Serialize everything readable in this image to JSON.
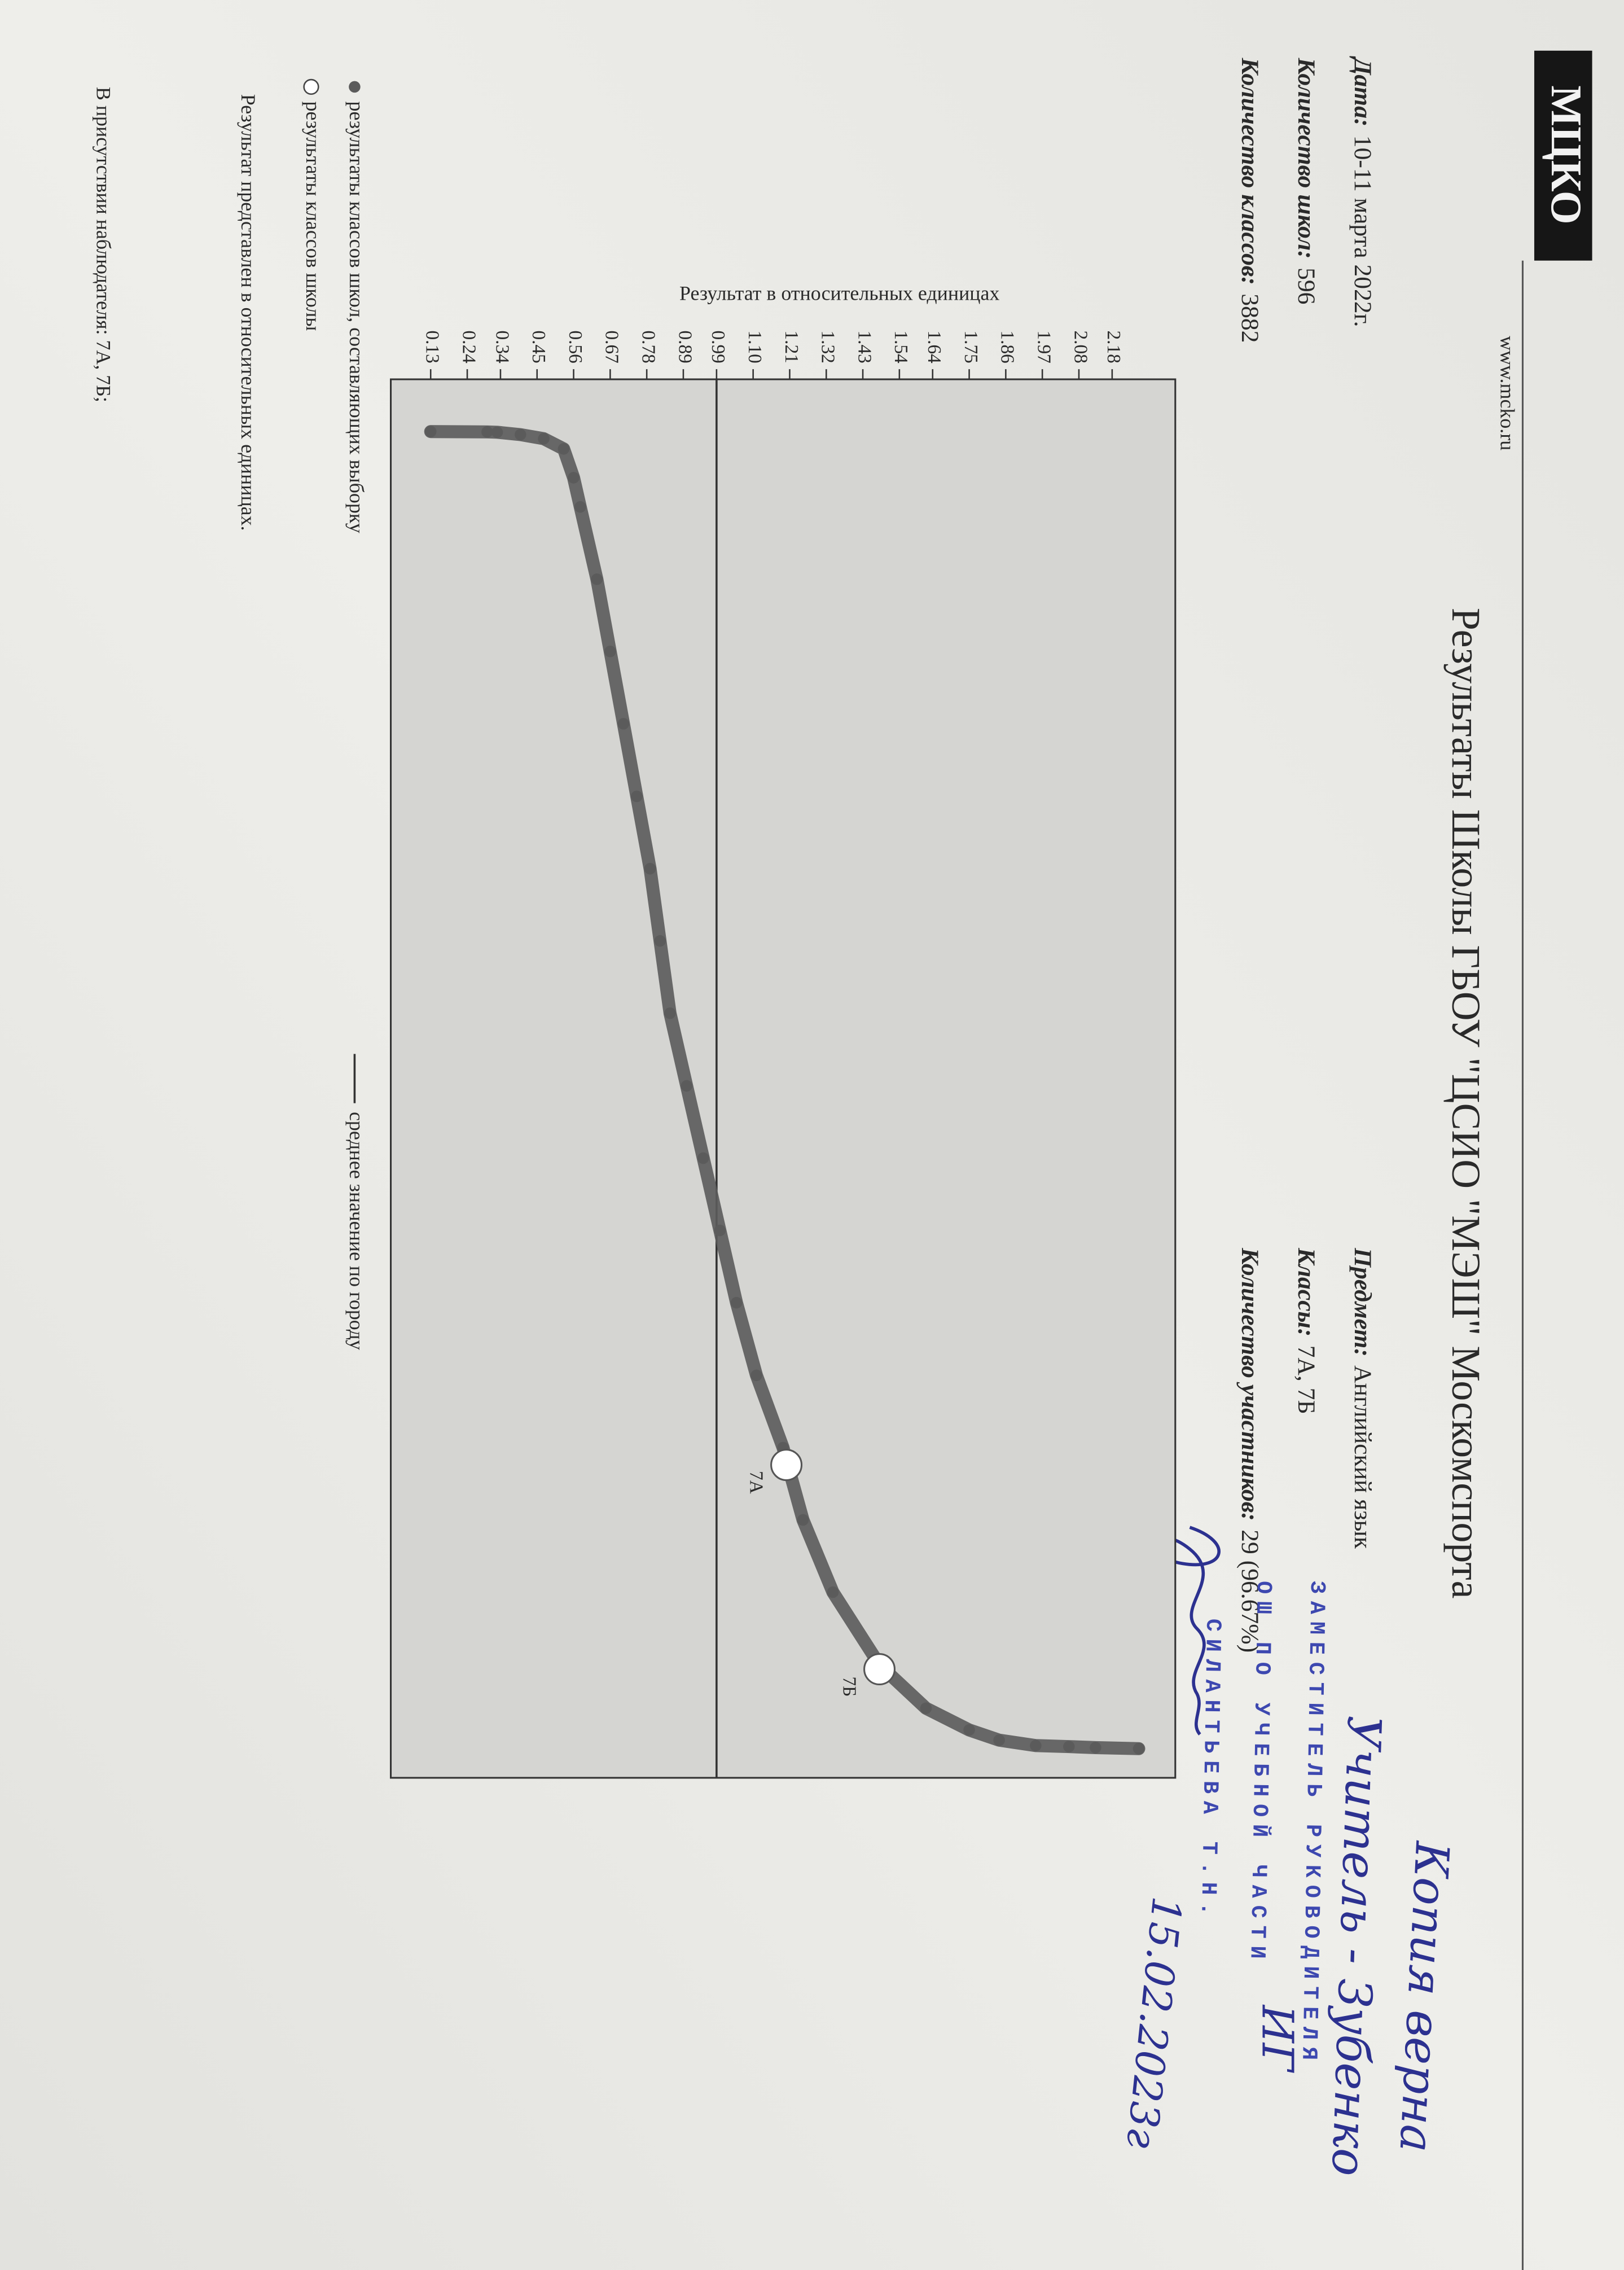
{
  "header": {
    "logo": "МЦКО",
    "url": "www.mcko.ru",
    "title": "Результаты Школы ГБОУ \"ЦСИО \"МЭШ\" Москомспорта"
  },
  "info": {
    "left": [
      {
        "label": "Дата:",
        "value": "10-11 марта 2022г."
      },
      {
        "label": "Количество школ:",
        "value": "596"
      },
      {
        "label": "Количество классов:",
        "value": "3882"
      }
    ],
    "right": [
      {
        "label": "Предмет:",
        "value": "Английский язык"
      },
      {
        "label": "Классы:",
        "value": "7А, 7Б"
      },
      {
        "label": "Количество участников:",
        "value": "29 (96.67%)"
      }
    ]
  },
  "chart_data": {
    "type": "scatter",
    "y_label": "Результат в относительных единицах",
    "ylim": [
      0.01,
      2.37
    ],
    "yticks": [
      0.13,
      0.24,
      0.34,
      0.45,
      0.56,
      0.67,
      0.78,
      0.89,
      0.99,
      {
        "value": 1.1,
        "label": "1.10"
      },
      1.21,
      1.32,
      1.43,
      1.54,
      1.64,
      1.75,
      1.86,
      1.97,
      2.08,
      2.18
    ],
    "xlim": [
      -153,
      3968
    ],
    "series": [
      {
        "name": "результаты классов школ, составляющих выборку",
        "color": "#5b5b5b",
        "x": [
          1,
          2,
          3,
          10,
          22,
          52,
          137,
          223,
          436,
          649,
          862,
          1076,
          1289,
          1502,
          1715,
          1929,
          2142,
          2355,
          2568,
          2782,
          2995,
          3208,
          3421,
          3635,
          3763,
          3827,
          3857,
          3873,
          3876,
          3879,
          3882
        ],
        "values": [
          0.13,
          0.3,
          0.33,
          0.4,
          0.47,
          0.53,
          0.56,
          0.58,
          0.63,
          0.67,
          0.71,
          0.75,
          0.79,
          0.82,
          0.85,
          0.9,
          0.95,
          1.0,
          1.05,
          1.11,
          1.19,
          1.25,
          1.34,
          1.48,
          1.62,
          1.75,
          1.84,
          1.95,
          2.05,
          2.13,
          2.26
        ]
      },
      {
        "name": "результаты классов школы",
        "color": "#ffffff",
        "x": [
          3046,
          3648
        ],
        "values": [
          1.2,
          1.48
        ],
        "labels": [
          "7А",
          "7Б"
        ]
      }
    ],
    "mean": {
      "name": "среднее значение по городу",
      "value": 0.99,
      "color": "#333333"
    }
  },
  "footer": {
    "note": "Результат представлен в относительных единицах.",
    "observers": "В присутствии наблюдателя: 7А, 7Б;"
  },
  "handwriting": {
    "certified": "Копия верна",
    "teacher": "Учитель - Зубенко",
    "teacher_initials": "ИГ",
    "date": "15.02.2023г"
  },
  "stamp": {
    "lines": [
      "ЗАМЕСТИТЕЛЬ РУКОВОДИТЕЛЯ",
      "ОШ ПО УЧЕБНОЙ ЧАСТИ",
      "СИЛАНТЬЕВА Т.Н."
    ]
  }
}
